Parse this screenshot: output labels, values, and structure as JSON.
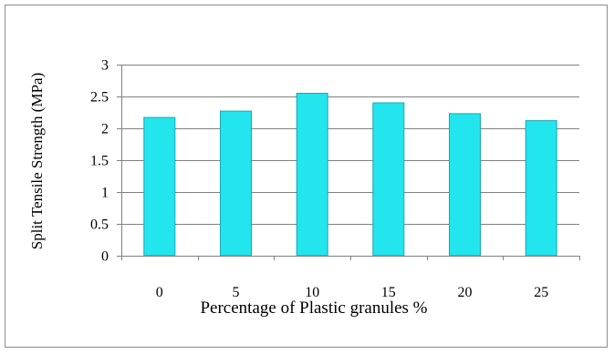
{
  "chart_data": {
    "type": "bar",
    "title": "",
    "xlabel": "Percentage of Plastic granules %",
    "ylabel": "Split Tensile Strength (MPa)",
    "categories": [
      "0",
      "5",
      "10",
      "15",
      "20",
      "25"
    ],
    "values": [
      2.17,
      2.27,
      2.55,
      2.4,
      2.23,
      2.12
    ],
    "ylim": [
      0,
      3
    ],
    "yticks": [
      "0",
      "0.5",
      "1",
      "1.5",
      "2",
      "2.5",
      "3"
    ],
    "grid": true,
    "legend": "none",
    "colors": {
      "bar_fill": "#22E5EE",
      "bar_stroke": "#1AA7B3",
      "grid": "#808080",
      "axis": "#808080",
      "frame": "#8C8C8C"
    }
  }
}
